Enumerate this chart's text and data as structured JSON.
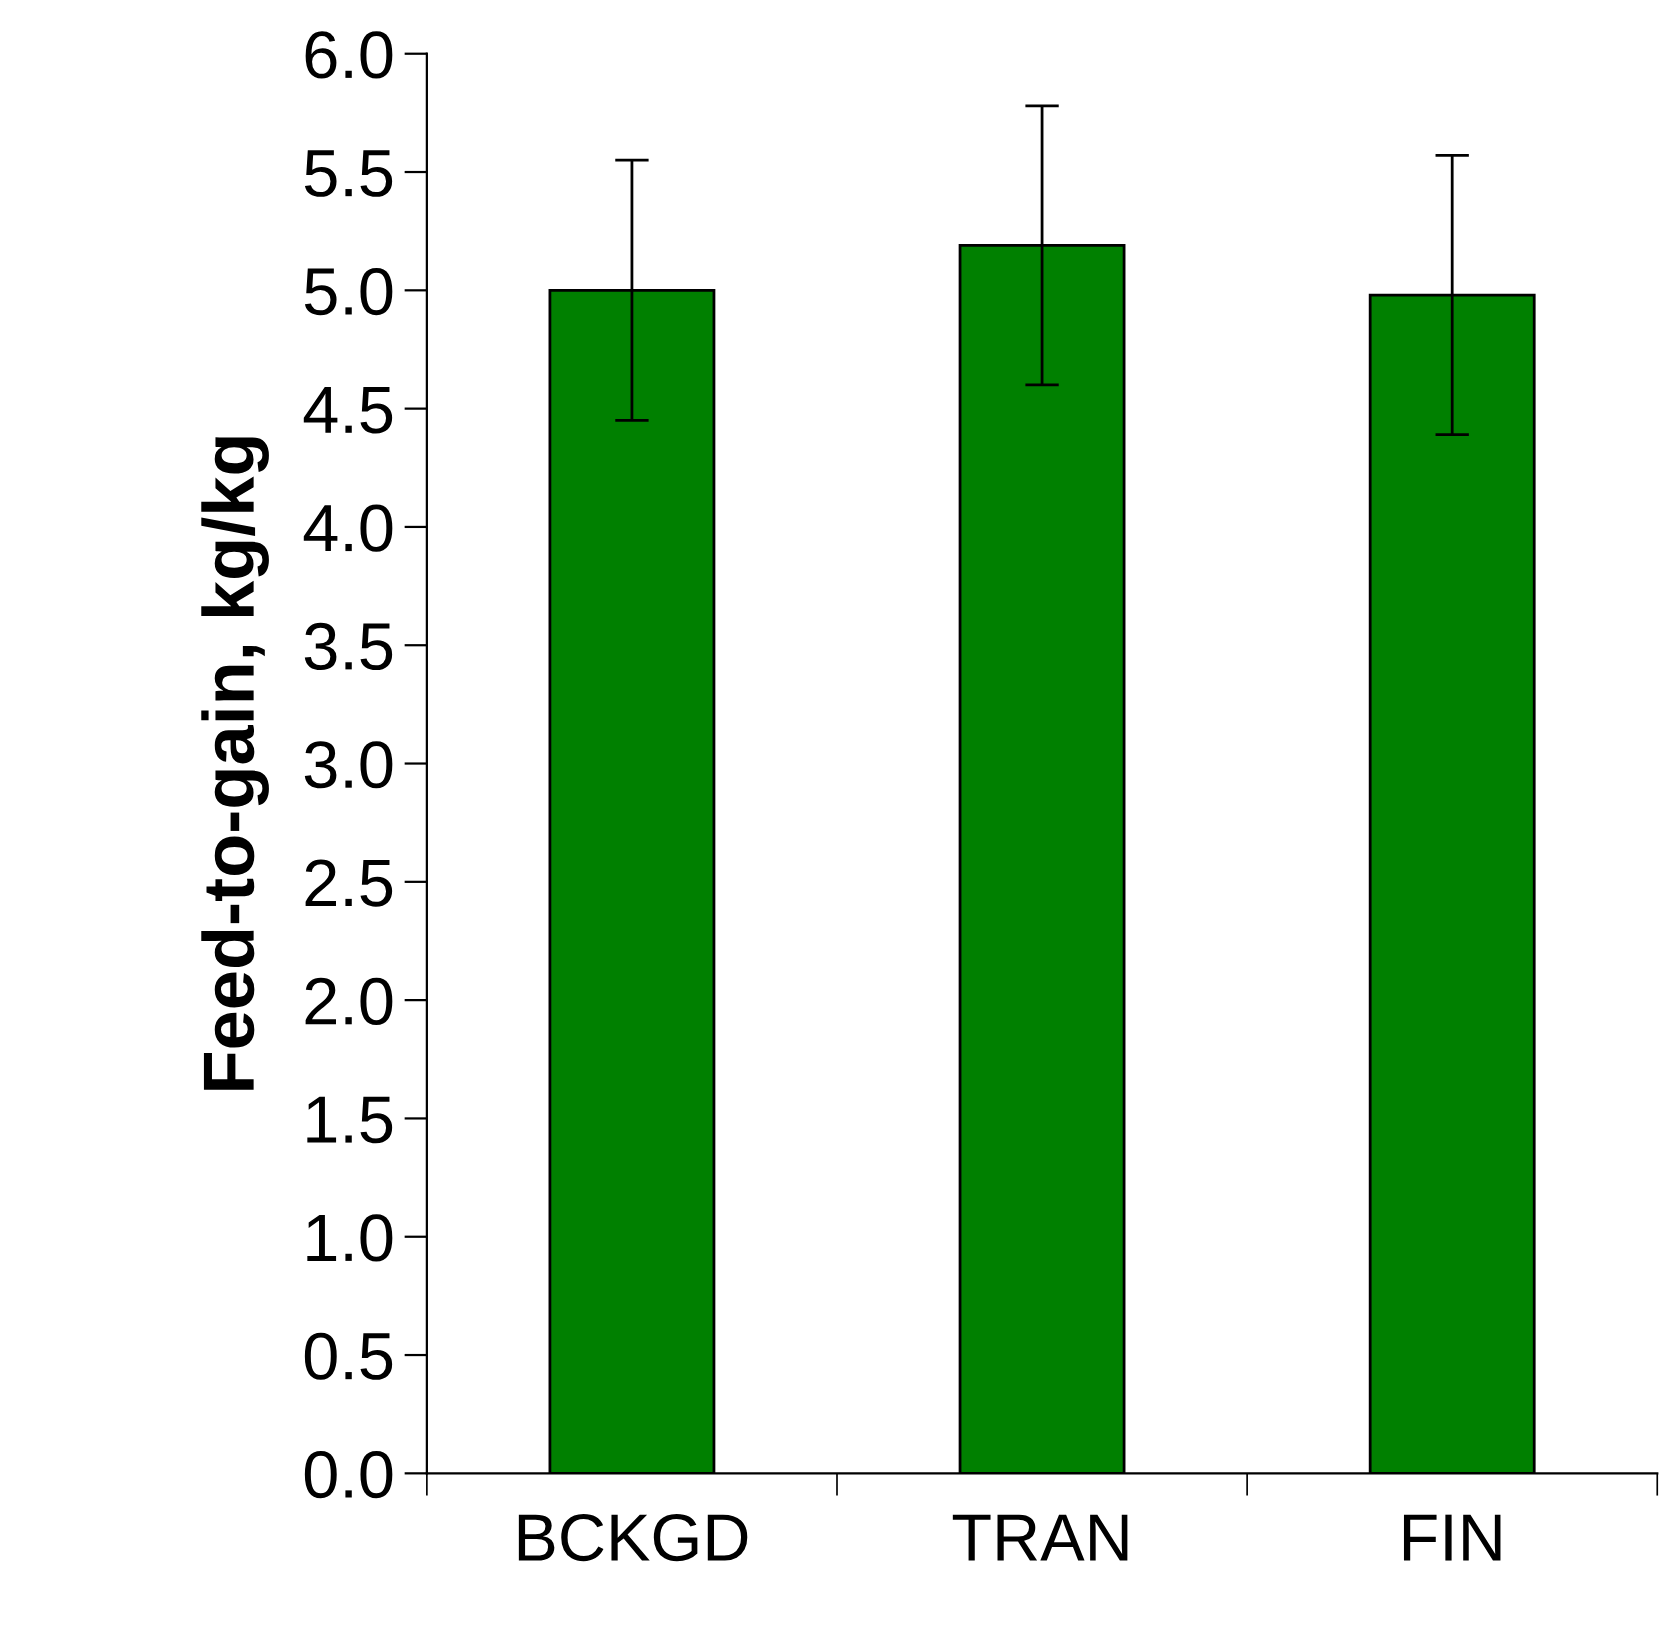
{
  "chart_data": {
    "type": "bar",
    "ylabel": "Feed-to-gain, kg/kg",
    "categories": [
      "BCKGD",
      "TRAN",
      "FIN"
    ],
    "values": [
      5.0,
      5.19,
      4.98
    ],
    "errors": [
      0.55,
      0.59,
      0.59
    ],
    "color": "#008000",
    "ylim": [
      0,
      6
    ],
    "yticks": [
      {
        "value": 0,
        "label": "0.0"
      },
      {
        "value": 0.5,
        "label": "0.5"
      },
      {
        "value": 1,
        "label": "1.0"
      },
      {
        "value": 1.5,
        "label": "1.5"
      },
      {
        "value": 2,
        "label": "2.0"
      },
      {
        "value": 2.5,
        "label": "2.5"
      },
      {
        "value": 3,
        "label": "3.0"
      },
      {
        "value": 3.5,
        "label": "3.5"
      },
      {
        "value": 4,
        "label": "4.0"
      },
      {
        "value": 4.5,
        "label": "4.5"
      },
      {
        "value": 5,
        "label": "5.0"
      },
      {
        "value": 5.5,
        "label": "5.5"
      },
      {
        "value": 6,
        "label": "6.0"
      }
    ],
    "grid": false
  }
}
